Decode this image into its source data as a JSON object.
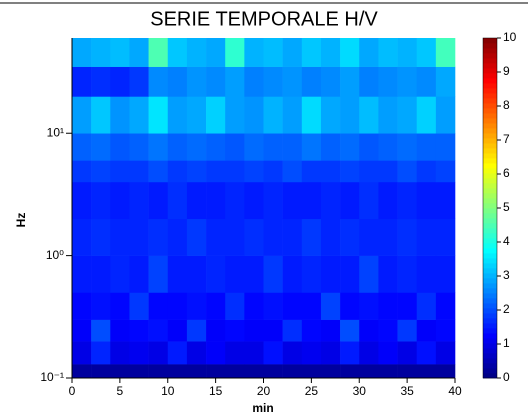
{
  "chart_data": {
    "type": "heatmap",
    "title": "SERIE TEMPORALE H/V",
    "xlabel": "min",
    "ylabel": "Hz",
    "log_y": true,
    "colormap": "jet",
    "xlim": [
      0,
      40
    ],
    "xticks": [
      0,
      5,
      10,
      15,
      20,
      25,
      30,
      35,
      40
    ],
    "ylim": [
      0.1,
      60
    ],
    "yticks": [
      {
        "value": 0.1,
        "label": "10⁻¹"
      },
      {
        "value": 1,
        "label": "10⁰"
      },
      {
        "value": 10,
        "label": "10¹"
      }
    ],
    "xbins": [
      0,
      2,
      4,
      6,
      8,
      10,
      12,
      14,
      16,
      18,
      20,
      22,
      24,
      26,
      28,
      30,
      32,
      34,
      36,
      38,
      40
    ],
    "ybins": [
      0.1,
      0.13,
      0.2,
      0.3,
      0.5,
      1,
      2,
      4,
      6,
      10,
      20,
      35,
      60
    ],
    "z": [
      [
        0.3,
        0.3,
        0.3,
        0.3,
        0.3,
        0.3,
        0.3,
        0.3,
        0.3,
        0.3,
        0.3,
        0.3,
        0.3,
        0.3,
        0.3,
        0.3,
        0.3,
        0.3,
        0.3,
        0.3
      ],
      [
        1.0,
        1.6,
        1.0,
        1.1,
        1.0,
        1.5,
        1.0,
        1.2,
        1.0,
        1.0,
        1.4,
        1.0,
        1.1,
        1.0,
        1.5,
        1.0,
        1.2,
        1.0,
        1.4,
        1.0
      ],
      [
        1.2,
        2.0,
        1.2,
        1.3,
        1.4,
        1.2,
        1.8,
        1.2,
        1.3,
        1.2,
        1.2,
        1.7,
        1.3,
        1.2,
        2.0,
        1.2,
        1.3,
        1.8,
        1.2,
        1.3
      ],
      [
        1.3,
        1.4,
        1.3,
        1.8,
        1.3,
        1.3,
        1.4,
        1.3,
        1.7,
        1.3,
        1.4,
        1.3,
        1.3,
        1.9,
        1.3,
        1.4,
        1.3,
        1.3,
        1.7,
        1.3
      ],
      [
        1.5,
        1.5,
        1.6,
        1.5,
        1.9,
        1.5,
        1.5,
        1.6,
        1.5,
        1.5,
        1.8,
        1.5,
        1.6,
        1.5,
        1.5,
        1.9,
        1.5,
        1.6,
        1.5,
        1.5
      ],
      [
        1.6,
        1.7,
        1.6,
        1.6,
        1.7,
        1.6,
        1.8,
        1.6,
        1.6,
        1.7,
        1.6,
        1.6,
        1.8,
        1.6,
        1.7,
        1.6,
        1.6,
        1.7,
        1.6,
        1.6
      ],
      [
        1.5,
        1.6,
        1.5,
        1.6,
        1.5,
        1.7,
        1.5,
        1.5,
        1.6,
        1.5,
        1.6,
        1.5,
        1.5,
        1.6,
        1.5,
        1.7,
        1.5,
        1.6,
        1.5,
        1.5
      ],
      [
        1.8,
        1.9,
        1.8,
        1.8,
        2.0,
        1.8,
        1.9,
        1.8,
        1.8,
        1.9,
        1.8,
        2.0,
        1.8,
        1.8,
        1.9,
        1.8,
        1.8,
        2.0,
        1.8,
        1.9
      ],
      [
        2.2,
        2.3,
        2.1,
        2.2,
        2.4,
        2.2,
        2.3,
        2.2,
        2.1,
        2.3,
        2.2,
        2.2,
        2.4,
        2.2,
        2.3,
        2.1,
        2.2,
        2.3,
        2.2,
        2.2
      ],
      [
        2.8,
        3.2,
        2.7,
        2.9,
        3.5,
        2.8,
        2.9,
        3.3,
        2.8,
        2.7,
        3.0,
        2.8,
        3.4,
        2.9,
        2.8,
        3.1,
        2.8,
        2.9,
        3.3,
        2.8
      ],
      [
        1.6,
        1.7,
        1.6,
        1.8,
        2.6,
        2.5,
        2.7,
        2.6,
        2.8,
        2.5,
        2.6,
        2.7,
        2.5,
        2.6,
        2.8,
        2.5,
        2.6,
        2.7,
        2.6,
        2.9
      ],
      [
        2.9,
        3.0,
        3.1,
        2.9,
        4.5,
        3.2,
        3.0,
        2.9,
        4.2,
        3.0,
        3.1,
        2.9,
        3.2,
        3.0,
        3.4,
        2.9,
        3.1,
        3.0,
        3.2,
        4.4
      ]
    ],
    "clim": [
      0,
      10
    ],
    "cticks": [
      0,
      1,
      2,
      3,
      4,
      5,
      6,
      7,
      8,
      9,
      10
    ]
  }
}
